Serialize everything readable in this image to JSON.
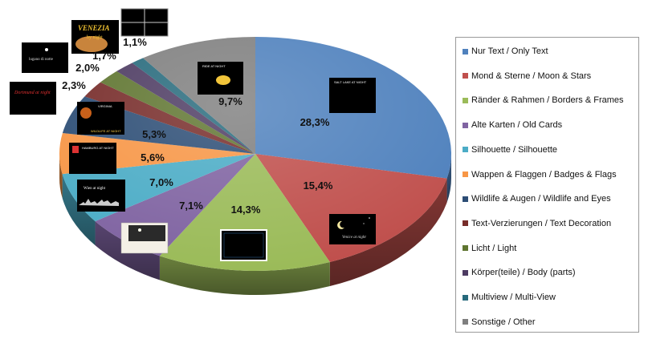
{
  "chart_data": {
    "type": "pie",
    "title": "",
    "legend_position": "right",
    "series": [
      {
        "name": "Nur Text / Only Text",
        "value": 28.3,
        "label": "28,3%",
        "color": "#4f81bd"
      },
      {
        "name": "Mond & Sterne / Moon & Stars",
        "value": 15.4,
        "label": "15,4%",
        "color": "#c0504d"
      },
      {
        "name": "Ränder & Rahmen / Borders & Frames",
        "value": 14.3,
        "label": "14,3%",
        "color": "#9bbb59"
      },
      {
        "name": "Alte Karten / Old Cards",
        "value": 7.1,
        "label": "7,1%",
        "color": "#8064a2"
      },
      {
        "name": "Silhouette / Silhouette",
        "value": 7.0,
        "label": "7,0%",
        "color": "#4bacc6"
      },
      {
        "name": "Wappen & Flaggen / Badges & Flags",
        "value": 5.6,
        "label": "5,6%",
        "color": "#f79646"
      },
      {
        "name": "Wildlife & Augen / Wildlife and Eyes",
        "value": 5.3,
        "label": "5,3%",
        "color": "#2c4d75"
      },
      {
        "name": "Text-Verzierungen / Text Decoration",
        "value": 2.3,
        "label": "2,3%",
        "color": "#772c2a"
      },
      {
        "name": "Licht / Light",
        "value": 2.0,
        "label": "2,0%",
        "color": "#5f7530"
      },
      {
        "name": "Körper(teile) / Body (parts)",
        "value": 1.7,
        "label": "1,7%",
        "color": "#4d3b62"
      },
      {
        "name": "Multiview / Multi-View",
        "value": 1.1,
        "label": "1,1%",
        "color": "#276a7c"
      },
      {
        "name": "Sonstige / Other",
        "value": 9.7,
        "label": "9,7%",
        "color": "#7f7f7f"
      }
    ]
  },
  "thumbnails": {
    "only_text": "SALT LAKE AT NIGHT",
    "moon": "Venice at night",
    "other": "RIDE AT NIGHT",
    "wildlife": "VIRGINIA",
    "wildlife_sub": "WILDLIFE AT NIGHT",
    "badges": "HAMBURG AT NIGHT",
    "silhouette": "Wien at night",
    "text_deco": "Dortmund at night",
    "light": "lugano di notte",
    "body_top": "VENEZIA",
    "body_bottom": "by night"
  }
}
